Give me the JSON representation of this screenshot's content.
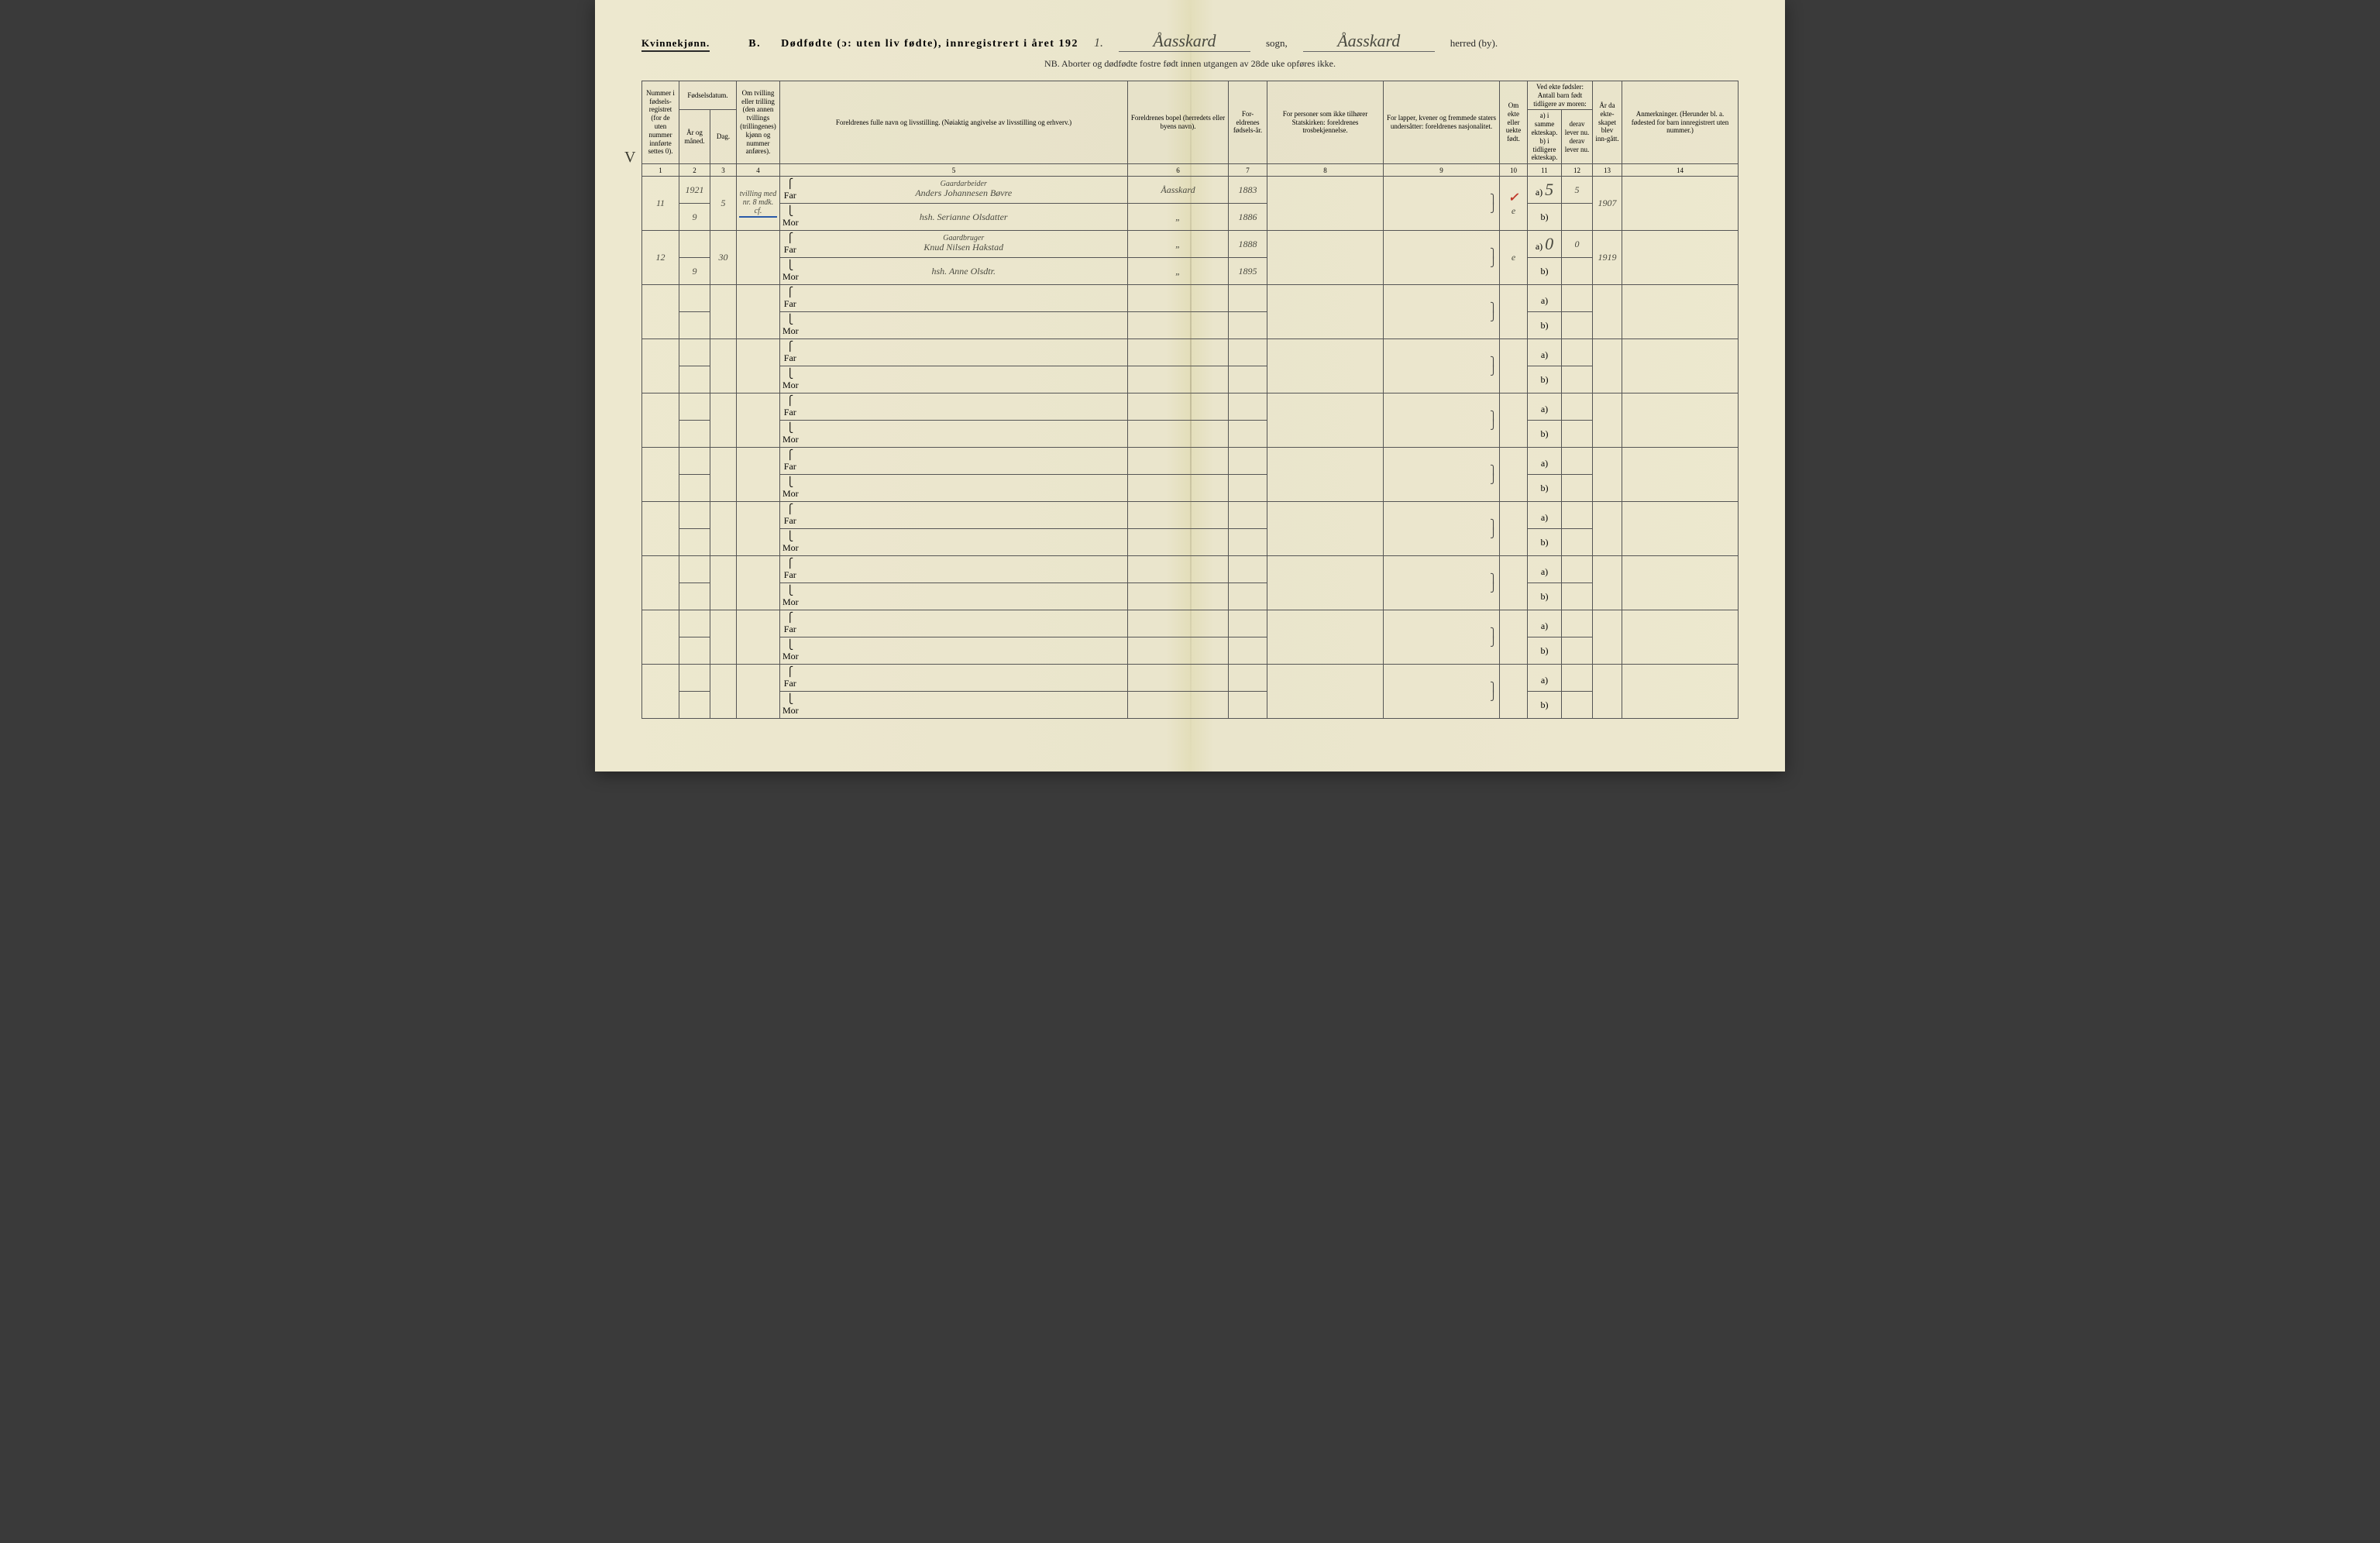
{
  "header": {
    "gender": "Kvinnekjønn.",
    "section": "B.",
    "title": "Dødfødte (ɔ: uten liv fødte), innregistrert i året 192",
    "year_digit": "1.",
    "sogn_value": "Åasskard",
    "sogn_label": "sogn,",
    "herred_value": "Åasskard",
    "herred_label": "herred (by).",
    "subtitle": "NB.  Aborter og dødfødte fostre født innen utgangen av 28de uke opføres ikke."
  },
  "columns": {
    "c1": "Nummer i fødsels-registret (for de uten nummer innførte settes 0).",
    "c2_top": "Fødselsdatum.",
    "c2a": "År og måned.",
    "c2b": "Dag.",
    "c4": "Om tvilling eller trilling (den annen tvillings (trillingenes) kjønn og nummer anføres).",
    "c5": "Foreldrenes fulle navn og livsstilling.\n(Nøiaktig angivelse av livsstilling og erhverv.)",
    "c6": "Foreldrenes bopel\n(herredets eller byens navn).",
    "c7": "For-eldrenes fødsels-år.",
    "c8": "For personer som ikke tilhører Statskirken:\nforeldrenes trosbekjennelse.",
    "c9": "For lapper, kvener og fremmede staters undersåtter:\nforeldrenes nasjonalitet.",
    "c10": "Om ekte eller uekte født.",
    "c11_top": "Ved ekte fødsler: Antall barn født tidligere av moren:",
    "c11a": "a) i samme ekteskap.",
    "c11b": "b) i tidligere ekteskap.",
    "c12a": "derav lever nu.",
    "c12b": "derav lever nu.",
    "c13": "År da ekte-skapet blev inn-gått.",
    "c14": "Anmerkninger.\n(Herunder bl. a. fødested for barn innregistrert uten nummer.)"
  },
  "colnums": [
    "1",
    "2",
    "3",
    "4",
    "5",
    "6",
    "7",
    "8",
    "9",
    "10",
    "11",
    "12",
    "13",
    "14"
  ],
  "rows": [
    {
      "num": "11",
      "year": "1921",
      "month": "9",
      "day": "5",
      "twin": "tvilling med nr. 8 mdk. cf.",
      "far_title": "Gaardarbeider",
      "far_name": "Anders Johannesen Bøvre",
      "far_place": "Åasskard",
      "far_birth": "1883",
      "mor_name": "hsh. Serianne Olsdatter",
      "mor_place": "„",
      "mor_birth": "1886",
      "ekte": "e",
      "a_val": "5",
      "a_derav": "5",
      "ekt_year": "1907",
      "red_check": "✓"
    },
    {
      "num": "12",
      "year": "",
      "month": "9",
      "day": "30",
      "twin": "",
      "far_title": "Gaardbruger",
      "far_name": "Knud Nilsen Hakstad",
      "far_place": "„",
      "far_birth": "1888",
      "mor_name": "hsh. Anne Olsdtr.",
      "mor_place": "„",
      "mor_birth": "1895",
      "ekte": "e",
      "a_val": "0",
      "a_derav": "0",
      "ekt_year": "1919",
      "red_check": ""
    }
  ],
  "labels": {
    "far": "Far",
    "mor": "Mor",
    "a": "a)",
    "b": "b)"
  },
  "margin_mark": "V",
  "empty_rows": 8,
  "colors": {
    "paper": "#ede8cf",
    "ink": "#2a2a2a",
    "hand": "#4a4a40",
    "red": "#c0392b",
    "blue": "#2a5aa8",
    "border": "#555"
  }
}
